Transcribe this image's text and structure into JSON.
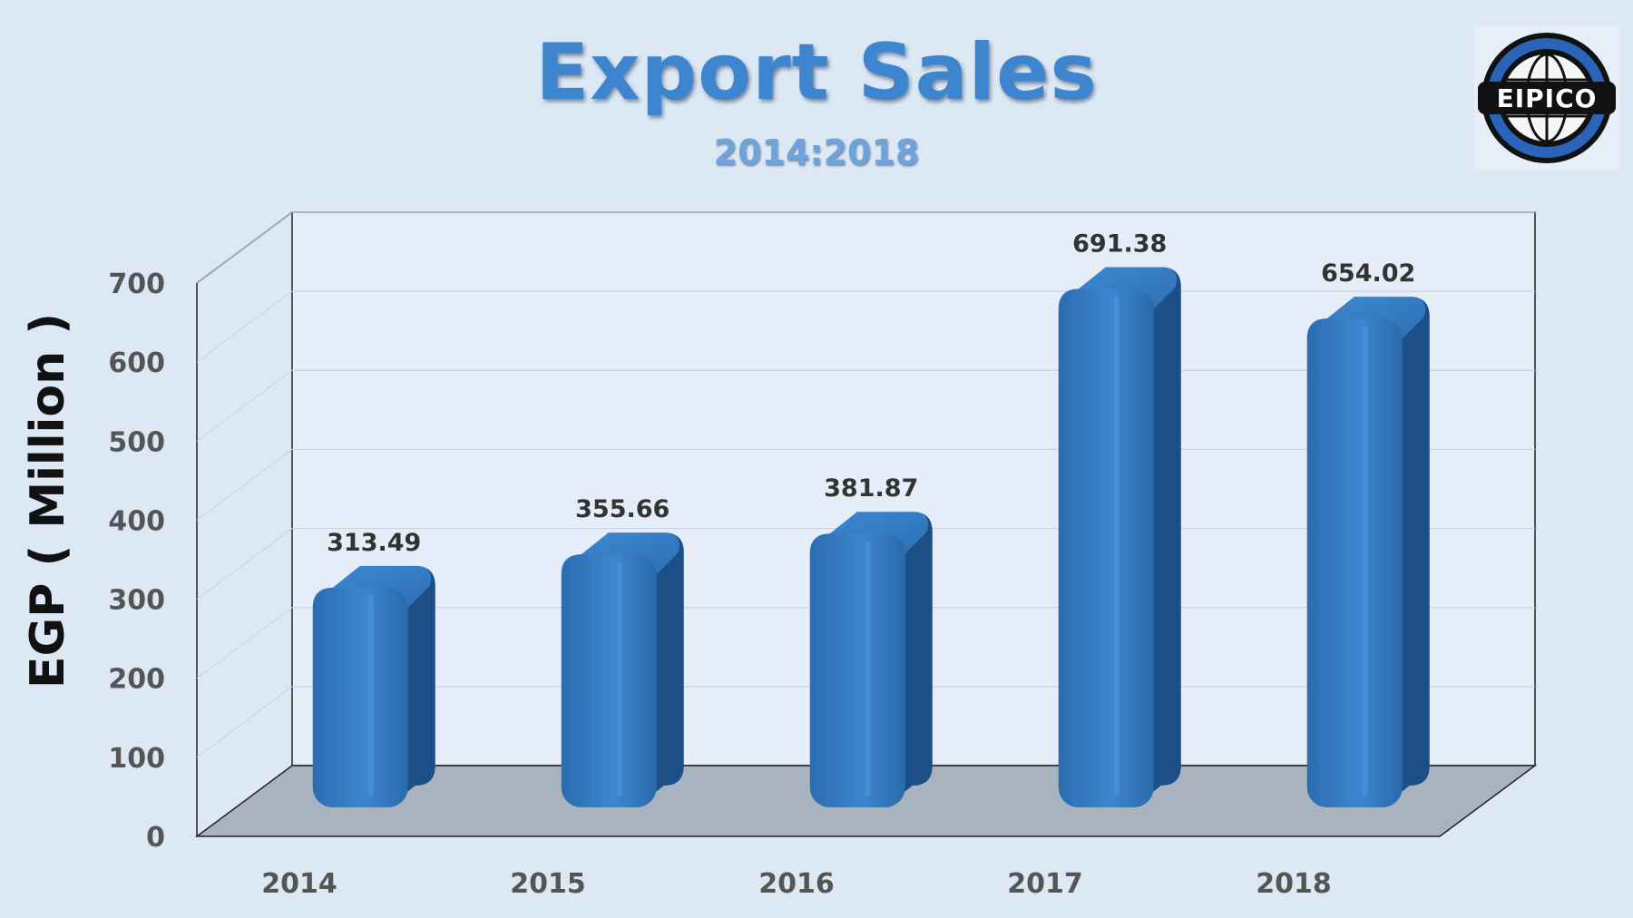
{
  "header": {
    "title": "Export Sales",
    "subtitle": "2014:2018"
  },
  "logo": {
    "text": "EIPICO"
  },
  "chart_data": {
    "type": "bar",
    "categories": [
      "2014",
      "2015",
      "2016",
      "2017",
      "2018"
    ],
    "values": [
      313.49,
      355.66,
      381.87,
      691.38,
      654.02
    ],
    "data_labels": [
      "313.49",
      "355.66",
      "381.87",
      "691.38",
      "654.02"
    ],
    "title": "Export Sales",
    "subtitle": "2014:2018",
    "xlabel": "",
    "ylabel": "EGP ( Million )",
    "ylim": [
      0,
      700
    ],
    "yticks": [
      "0",
      "100",
      "200",
      "300",
      "400",
      "500",
      "600",
      "700"
    ],
    "grid": true,
    "style": "3d-cylinder",
    "colors": {
      "bar": "#2e73b8",
      "bar_dark": "#1c4f86",
      "bar_light": "#3d86cf",
      "floor": "#a8b3bf",
      "grid": "#c7d3e0",
      "axis_text": "#555555",
      "label_text": "#333333"
    }
  }
}
